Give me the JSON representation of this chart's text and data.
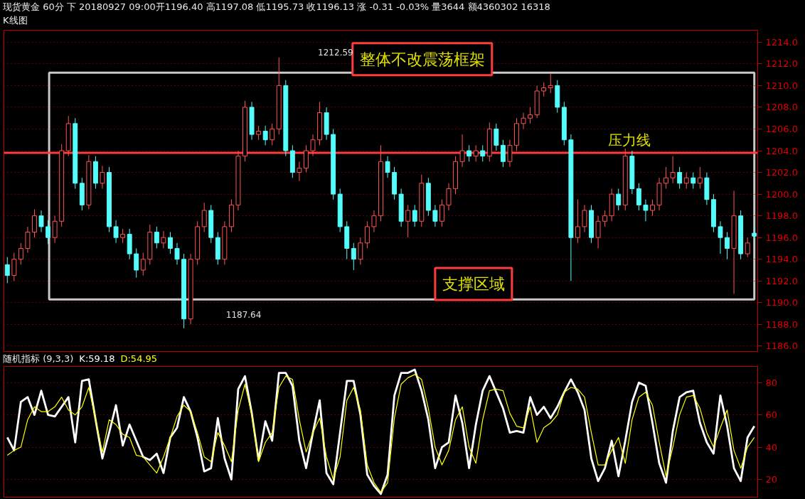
{
  "chart_data": [
    {
      "type": "candlestick",
      "title": "现货黄金 60分 下 20180927 09:00开1196.40 高1197.08 低1195.73 收1196.13 涨 -0.31 -0.03% 量3644 额4360302 16318",
      "subtitle": "K线图",
      "categories": [
        null,
        null,
        null,
        null,
        null,
        null,
        null,
        null,
        null,
        null,
        null,
        null,
        null,
        null,
        null,
        null,
        null,
        null,
        null,
        null,
        null,
        null,
        null,
        null,
        null,
        null,
        null,
        null,
        null,
        null,
        null,
        null,
        null,
        null,
        null,
        null,
        null,
        null,
        null,
        null,
        null,
        null,
        null,
        null,
        null,
        null,
        null,
        null,
        null,
        null,
        null,
        null,
        null,
        null,
        null,
        null,
        null,
        null,
        null,
        null,
        null,
        null,
        null,
        null,
        null,
        null,
        null,
        null,
        null,
        null,
        null,
        null,
        null,
        null,
        null,
        null,
        null,
        null,
        null,
        null,
        null,
        null,
        null,
        null,
        null,
        null,
        null,
        null,
        null,
        null,
        null,
        null,
        null,
        null,
        null,
        null,
        null,
        null,
        null,
        null,
        null,
        null,
        null,
        null,
        null,
        null,
        null,
        null,
        null,
        null,
        null
      ],
      "ohlc": [
        [
          1193.5,
          1194.2,
          1191.8,
          1192.5
        ],
        [
          1192.5,
          1194.6,
          1192,
          1194
        ],
        [
          1194,
          1195.5,
          1193.5,
          1195
        ],
        [
          1195,
          1197,
          1194.6,
          1196.5
        ],
        [
          1196.5,
          1198.6,
          1196,
          1198
        ],
        [
          1198,
          1198.5,
          1196.5,
          1197
        ],
        [
          1197,
          1197.6,
          1195.4,
          1196
        ],
        [
          1196,
          1198,
          1195.5,
          1197.5
        ],
        [
          1197.5,
          1204.6,
          1197,
          1204
        ],
        [
          1204,
          1207.2,
          1203.5,
          1206.5
        ],
        [
          1206.5,
          1207,
          1200.5,
          1201
        ],
        [
          1201,
          1201.5,
          1198.5,
          1199
        ],
        [
          1199,
          1203.6,
          1198.6,
          1203
        ],
        [
          1203,
          1203.5,
          1200.5,
          1201
        ],
        [
          1201,
          1202.6,
          1200.5,
          1202
        ],
        [
          1202,
          1202.5,
          1196.5,
          1197
        ],
        [
          1197,
          1197.6,
          1195.5,
          1196
        ],
        [
          1196,
          1196.8,
          1195.5,
          1196.3
        ],
        [
          1196.3,
          1196.8,
          1194,
          1194.5
        ],
        [
          1194.5,
          1195,
          1192.3,
          1193
        ],
        [
          1193,
          1194.6,
          1192.5,
          1194
        ],
        [
          1194,
          1197.2,
          1193.5,
          1196.5
        ],
        [
          1196.5,
          1197,
          1195,
          1195.5
        ],
        [
          1195.5,
          1196.6,
          1195,
          1196
        ],
        [
          1196,
          1196.5,
          1194.5,
          1195
        ],
        [
          1195,
          1195.5,
          1193.5,
          1194
        ],
        [
          1194,
          1194.5,
          1187.64,
          1188.5
        ],
        [
          1188.5,
          1194.5,
          1188,
          1194
        ],
        [
          1194,
          1197.5,
          1193.5,
          1197
        ],
        [
          1197,
          1199.2,
          1196.5,
          1198.5
        ],
        [
          1198.5,
          1199,
          1195.5,
          1196
        ],
        [
          1196,
          1196.5,
          1193.5,
          1194
        ],
        [
          1194,
          1197.5,
          1193.5,
          1197
        ],
        [
          1197,
          1199.5,
          1196.5,
          1199
        ],
        [
          1199,
          1204,
          1198.5,
          1203.5
        ],
        [
          1203.5,
          1208.6,
          1203,
          1208
        ],
        [
          1208,
          1208.5,
          1205,
          1205.5
        ],
        [
          1205.5,
          1206.3,
          1205,
          1205.8
        ],
        [
          1205.8,
          1206.3,
          1204.5,
          1205
        ],
        [
          1205,
          1206.5,
          1204.5,
          1206
        ],
        [
          1206,
          1212.59,
          1205.5,
          1210
        ],
        [
          1210,
          1210.5,
          1203.5,
          1204
        ],
        [
          1204,
          1204.5,
          1201.5,
          1202
        ],
        [
          1202,
          1203,
          1201.2,
          1202.4
        ],
        [
          1202.4,
          1204.5,
          1202,
          1204
        ],
        [
          1204,
          1205.5,
          1203.5,
          1205
        ],
        [
          1205,
          1208.5,
          1204.5,
          1207.5
        ],
        [
          1207.5,
          1208,
          1205,
          1205.5
        ],
        [
          1205.5,
          1206,
          1199.5,
          1200
        ],
        [
          1200,
          1200.5,
          1196.5,
          1197
        ],
        [
          1197,
          1197.5,
          1194,
          1195
        ],
        [
          1195,
          1195.5,
          1193,
          1194
        ],
        [
          1194,
          1196,
          1193.5,
          1195.5
        ],
        [
          1195.5,
          1197.5,
          1195,
          1197
        ],
        [
          1197,
          1198.5,
          1196.5,
          1198
        ],
        [
          1198,
          1204.5,
          1197.5,
          1203
        ],
        [
          1203,
          1203.5,
          1201.5,
          1202
        ],
        [
          1202,
          1202.5,
          1199.5,
          1200
        ],
        [
          1200,
          1200.5,
          1197,
          1197.5
        ],
        [
          1197.5,
          1199,
          1196,
          1198.5
        ],
        [
          1198.5,
          1199,
          1197,
          1197.5
        ],
        [
          1197.5,
          1201.8,
          1197,
          1201
        ],
        [
          1201,
          1201.5,
          1198,
          1198.5
        ],
        [
          1198.5,
          1199,
          1197,
          1197.5
        ],
        [
          1197.5,
          1199.5,
          1197,
          1199
        ],
        [
          1199,
          1201,
          1198.5,
          1200.5
        ],
        [
          1200.5,
          1203.5,
          1200,
          1203
        ],
        [
          1203,
          1205.5,
          1202.5,
          1204
        ],
        [
          1204,
          1204.5,
          1203,
          1203.5
        ],
        [
          1203.5,
          1204.5,
          1203,
          1204
        ],
        [
          1204,
          1204.5,
          1203,
          1203.5
        ],
        [
          1203.5,
          1206.6,
          1203,
          1206
        ],
        [
          1206,
          1206.5,
          1204,
          1204.5
        ],
        [
          1204.5,
          1205,
          1202.5,
          1203
        ],
        [
          1203,
          1205,
          1202.5,
          1204.5
        ],
        [
          1204.5,
          1207,
          1204,
          1206.5
        ],
        [
          1206.5,
          1207.5,
          1206,
          1207
        ],
        [
          1207,
          1208,
          1206.5,
          1207.3
        ],
        [
          1207.3,
          1210,
          1207,
          1209.5
        ],
        [
          1209.5,
          1210.3,
          1209,
          1209.8
        ],
        [
          1209.8,
          1211.1,
          1209.3,
          1210
        ],
        [
          1210,
          1210.5,
          1207.5,
          1208
        ],
        [
          1208,
          1208.5,
          1204.5,
          1205
        ],
        [
          1205,
          1205.5,
          1192,
          1196
        ],
        [
          1196,
          1199.5,
          1195.5,
          1197
        ],
        [
          1197,
          1199,
          1196.5,
          1198.5
        ],
        [
          1198.5,
          1199,
          1195.5,
          1196
        ],
        [
          1196,
          1198,
          1195,
          1197.5
        ],
        [
          1197.5,
          1198.5,
          1197,
          1198
        ],
        [
          1198,
          1200.5,
          1197.5,
          1200
        ],
        [
          1200,
          1200.5,
          1198.5,
          1199
        ],
        [
          1199,
          1204.2,
          1198.5,
          1203.5
        ],
        [
          1203.5,
          1204,
          1200,
          1200.5
        ],
        [
          1200.5,
          1201,
          1198.5,
          1199
        ],
        [
          1199,
          1199.5,
          1197.5,
          1198.5
        ],
        [
          1198.5,
          1199.5,
          1198,
          1199
        ],
        [
          1199,
          1201.5,
          1198.5,
          1201
        ],
        [
          1201,
          1202.5,
          1200.5,
          1201.5
        ],
        [
          1201.5,
          1203.5,
          1201,
          1202
        ],
        [
          1202,
          1202.5,
          1200.5,
          1201
        ],
        [
          1201,
          1202,
          1200.5,
          1201.5
        ],
        [
          1201.5,
          1202,
          1200.5,
          1201
        ],
        [
          1201,
          1202.5,
          1200.5,
          1201.5
        ],
        [
          1201.5,
          1202,
          1199,
          1199.5
        ],
        [
          1199.5,
          1200,
          1196.5,
          1197
        ],
        [
          1197,
          1197.5,
          1194.5,
          1196
        ],
        [
          1196,
          1196.5,
          1194,
          1195
        ],
        [
          1195,
          1200.3,
          1190.8,
          1198
        ],
        [
          1198,
          1198.5,
          1194,
          1194.5
        ],
        [
          1194.5,
          1196,
          1194.2,
          1195.5
        ],
        [
          1196.4,
          1197.08,
          1195.73,
          1196.13
        ]
      ],
      "colors": [
        "#54fcfc",
        "#ff5454",
        "#ff5454",
        "#ff5454",
        "#ff5454",
        "#54fcfc",
        "#54fcfc",
        "#ff5454",
        "#ff5454",
        "#ff5454",
        "#54fcfc",
        "#54fcfc",
        "#ff5454",
        "#54fcfc",
        "#ff5454",
        "#54fcfc",
        "#54fcfc",
        "#ff5454",
        "#54fcfc",
        "#54fcfc",
        "#ff5454",
        "#ff5454",
        "#54fcfc",
        "#ff5454",
        "#54fcfc",
        "#54fcfc",
        "#54fcfc",
        "#ff5454",
        "#ff5454",
        "#ff5454",
        "#54fcfc",
        "#54fcfc",
        "#ff5454",
        "#ff5454",
        "#ff5454",
        "#ff5454",
        "#54fcfc",
        "#ff5454",
        "#54fcfc",
        "#ff5454",
        "#ff5454",
        "#54fcfc",
        "#54fcfc",
        "#ff5454",
        "#ff5454",
        "#ff5454",
        "#ff5454",
        "#54fcfc",
        "#54fcfc",
        "#54fcfc",
        "#54fcfc",
        "#54fcfc",
        "#ff5454",
        "#ff5454",
        "#ff5454",
        "#ff5454",
        "#54fcfc",
        "#54fcfc",
        "#54fcfc",
        "#ff5454",
        "#54fcfc",
        "#ff5454",
        "#54fcfc",
        "#54fcfc",
        "#ff5454",
        "#ff5454",
        "#ff5454",
        "#ff5454",
        "#54fcfc",
        "#ff5454",
        "#54fcfc",
        "#ff5454",
        "#54fcfc",
        "#54fcfc",
        "#ff5454",
        "#ff5454",
        "#ff5454",
        "#ff5454",
        "#ff5454",
        "#ff5454",
        "#ff5454",
        "#54fcfc",
        "#54fcfc",
        "#54fcfc",
        "#ff5454",
        "#ff5454",
        "#54fcfc",
        "#ff5454",
        "#ff5454",
        "#ff5454",
        "#54fcfc",
        "#ff5454",
        "#54fcfc",
        "#54fcfc",
        "#54fcfc",
        "#ff5454",
        "#ff5454",
        "#ff5454",
        "#ff5454",
        "#54fcfc",
        "#ff5454",
        "#54fcfc",
        "#ff5454",
        "#54fcfc",
        "#54fcfc",
        "#54fcfc",
        "#54fcfc",
        "#ff5454",
        "#54fcfc",
        "#ff5454",
        "#54fcfc"
      ],
      "ylim": [
        1185.5,
        1215.1
      ],
      "yticks": [
        {
          "value": 1186,
          "label": "1186.0"
        },
        {
          "value": 1188,
          "label": "1188.0"
        },
        {
          "value": 1190,
          "label": "1190.0"
        },
        {
          "value": 1192,
          "label": "1192.0"
        },
        {
          "value": 1194,
          "label": "1194.0"
        },
        {
          "value": 1196,
          "label": "1196.0"
        },
        {
          "value": 1198,
          "label": "1198.0"
        },
        {
          "value": 1200,
          "label": "1200.0"
        },
        {
          "value": 1202,
          "label": "1202.0"
        },
        {
          "value": 1204,
          "label": "1204.0"
        },
        {
          "value": 1206,
          "label": "1206.0"
        },
        {
          "value": 1208,
          "label": "1208.0"
        },
        {
          "value": 1210,
          "label": "1210.0"
        },
        {
          "value": 1212,
          "label": "1212.0"
        },
        {
          "value": 1214,
          "label": "1214.0"
        }
      ],
      "grid": "y",
      "tick_labels": "y",
      "annotations": [
        "整体不改震荡框架",
        "支撑区域",
        "1212.59",
        "1187.64"
      ],
      "ref_lines": [
        {
          "axis": "y",
          "value": 1203.8,
          "label": "压力线",
          "color": "#ff3c3c"
        }
      ]
    },
    {
      "type": "line",
      "title": "随机指标 (9,3,3)",
      "categories": [
        null,
        null,
        null,
        null,
        null,
        null,
        null,
        null,
        null,
        null,
        null,
        null,
        null,
        null,
        null,
        null,
        null,
        null,
        null,
        null,
        null,
        null,
        null,
        null,
        null,
        null,
        null,
        null,
        null,
        null,
        null,
        null,
        null,
        null,
        null,
        null,
        null,
        null,
        null,
        null,
        null,
        null,
        null,
        null,
        null,
        null,
        null,
        null,
        null,
        null,
        null,
        null,
        null,
        null,
        null,
        null,
        null,
        null,
        null,
        null,
        null,
        null,
        null,
        null,
        null,
        null,
        null,
        null,
        null,
        null,
        null,
        null,
        null,
        null,
        null,
        null,
        null,
        null,
        null,
        null,
        null,
        null,
        null,
        null,
        null,
        null,
        null,
        null,
        null,
        null,
        null,
        null,
        null,
        null,
        null,
        null,
        null,
        null,
        null,
        null,
        null,
        null,
        null,
        null,
        null,
        null,
        null,
        null,
        null,
        null,
        null
      ],
      "series": [
        {
          "name": "K:59.18",
          "color": "#ffffff",
          "values": [
            46,
            38,
            68,
            71,
            60,
            75,
            60,
            59,
            65,
            71,
            43,
            81,
            82,
            57,
            33,
            49,
            66,
            41,
            54,
            44,
            34,
            32,
            36,
            24,
            46,
            52,
            71,
            62,
            46,
            25,
            27,
            58,
            33,
            20,
            76,
            84,
            61,
            32,
            56,
            44,
            86,
            86,
            78,
            44,
            27,
            49,
            69,
            24,
            17,
            49,
            81,
            81,
            60,
            23,
            16,
            11,
            23,
            72,
            86,
            86,
            88,
            75,
            57,
            27,
            40,
            43,
            72,
            55,
            27,
            54,
            75,
            84,
            74,
            64,
            49,
            50,
            49,
            71,
            60,
            65,
            58,
            65,
            74,
            82,
            74,
            63,
            33,
            19,
            27,
            44,
            22,
            44,
            68,
            80,
            78,
            55,
            30,
            18,
            50,
            71,
            74,
            75,
            55,
            43,
            36,
            72,
            53,
            27,
            19,
            46,
            53
          ]
        },
        {
          "name": "D:54.95",
          "color": "#ffff00",
          "values": [
            35,
            38,
            40,
            57,
            65,
            62,
            62,
            65,
            71,
            63,
            60,
            65,
            77,
            57,
            37,
            57,
            54,
            48,
            46,
            35,
            34,
            29,
            24,
            34,
            46,
            59,
            66,
            62,
            49,
            34,
            31,
            49,
            41,
            31,
            63,
            79,
            60,
            31,
            43,
            49,
            77,
            84,
            82,
            57,
            37,
            49,
            58,
            34,
            20,
            34,
            69,
            77,
            63,
            29,
            18,
            12,
            18,
            58,
            79,
            83,
            85,
            82,
            64,
            40,
            29,
            38,
            57,
            65,
            40,
            30,
            57,
            75,
            76,
            75,
            61,
            53,
            52,
            65,
            43,
            52,
            55,
            60,
            74,
            77,
            76,
            71,
            49,
            29,
            29,
            38,
            46,
            30,
            57,
            71,
            74,
            66,
            43,
            22,
            40,
            60,
            71,
            72,
            64,
            49,
            40,
            52,
            63,
            38,
            27,
            40,
            46
          ]
        }
      ],
      "ylim": [
        9,
        90
      ],
      "yticks": [
        20,
        40,
        60,
        80
      ],
      "grid": "y",
      "tick_labels": "y"
    }
  ]
}
